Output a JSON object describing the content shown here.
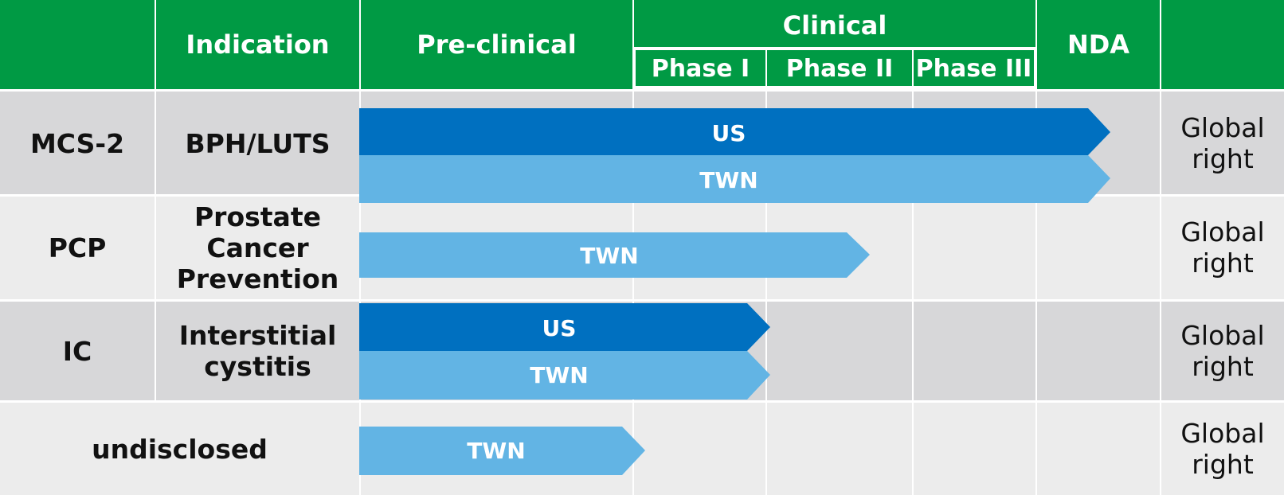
{
  "header": {
    "indication": "Indication",
    "preclinical": "Pre-clinical",
    "clinical": "Clinical",
    "phase1": "Phase I",
    "phase2": "Phase II",
    "phase3": "Phase III",
    "nda": "NDA"
  },
  "rows": [
    {
      "drug": "MCS-2",
      "indication": "BPH/LUTS",
      "rights": [
        "Global",
        "right"
      ],
      "bars": [
        {
          "label": "US",
          "stage": "NDA"
        },
        {
          "label": "TWN",
          "stage": "NDA"
        }
      ]
    },
    {
      "drug": "PCP",
      "indication_lines": [
        "Prostate",
        "Cancer",
        "Prevention"
      ],
      "rights": [
        "Global",
        "right"
      ],
      "bars": [
        {
          "label": "TWN",
          "stage": "Phase II"
        }
      ]
    },
    {
      "drug": "IC",
      "indication_lines": [
        "Interstitial",
        "cystitis"
      ],
      "rights": [
        "Global",
        "right"
      ],
      "bars": [
        {
          "label": "US",
          "stage": "Phase I"
        },
        {
          "label": "TWN",
          "stage": "Phase I"
        }
      ]
    },
    {
      "drug": "undisclosed",
      "rights": [
        "Global",
        "right"
      ],
      "bars": [
        {
          "label": "TWN",
          "stage": "Pre-clinical"
        }
      ]
    }
  ],
  "colors": {
    "header_green": "#009a44",
    "bar_us": "#0070c0",
    "bar_twn": "#62b4e4",
    "row_dark": "#d7d7d9",
    "row_light": "#ececec"
  }
}
